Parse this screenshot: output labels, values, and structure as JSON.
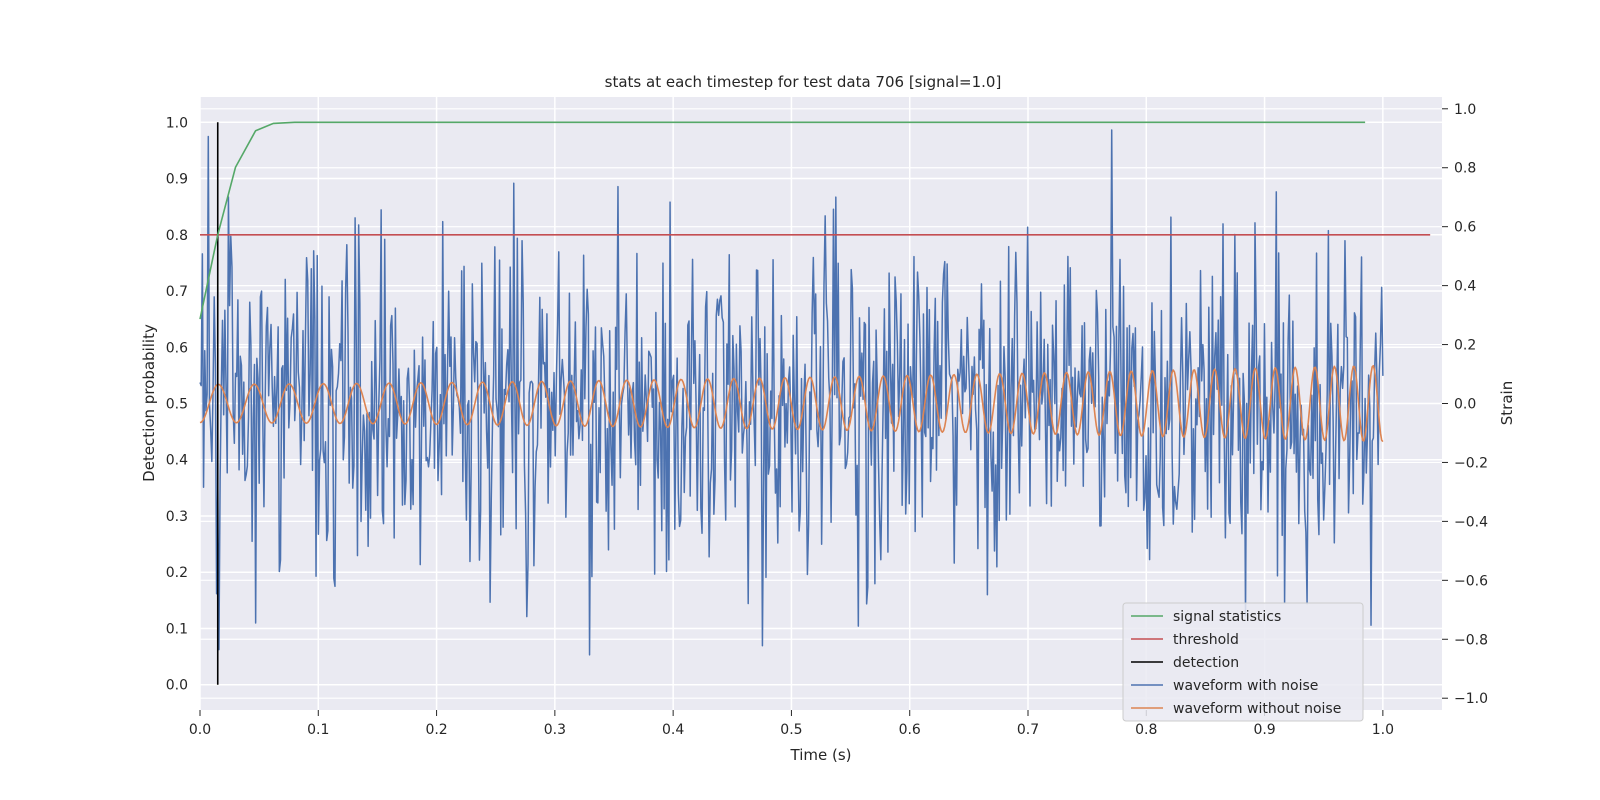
{
  "chart_data": {
    "type": "line",
    "title": "stats at each timestep for test data 706 [signal=1.0]",
    "xlabel": "Time (s)",
    "ylabel_left": "Detection probability",
    "ylabel_right": "Strain",
    "xlim": [
      0.0,
      1.05
    ],
    "ylim_left": [
      -0.045,
      1.045
    ],
    "ylim_right": [
      -1.04,
      1.04
    ],
    "grid": true,
    "legend_position": "lower-right",
    "x_ticks": [
      "0.0",
      "0.1",
      "0.2",
      "0.3",
      "0.4",
      "0.5",
      "0.6",
      "0.7",
      "0.8",
      "0.9",
      "1.0"
    ],
    "y_ticks_left": [
      "0.0",
      "0.1",
      "0.2",
      "0.3",
      "0.4",
      "0.5",
      "0.6",
      "0.7",
      "0.8",
      "0.9",
      "1.0"
    ],
    "y_ticks_right": [
      "−1.0",
      "−0.8",
      "−0.6",
      "−0.4",
      "−0.2",
      "0.0",
      "0.2",
      "0.4",
      "0.6",
      "0.8",
      "1.0"
    ],
    "colors": {
      "background": "#eaeaf2",
      "grid": "#ffffff",
      "signal_statistics": "#55a868",
      "threshold": "#c44e52",
      "detection": "#000000",
      "waveform_with_noise": "#4c72b0",
      "waveform_without_noise": "#dd8452"
    },
    "series": [
      {
        "name": "signal statistics",
        "axis": "left",
        "x": [
          0.0,
          0.015,
          0.03,
          0.047,
          0.062,
          0.08,
          0.12,
          0.3,
          0.6,
          0.9,
          0.985
        ],
        "y": [
          0.65,
          0.8,
          0.92,
          0.985,
          0.998,
          1.0,
          1.0,
          1.0,
          1.0,
          1.0,
          1.0
        ]
      },
      {
        "name": "threshold",
        "axis": "left",
        "x": [
          0.0,
          1.04
        ],
        "y": [
          0.8,
          0.8
        ]
      },
      {
        "name": "detection",
        "axis": "left",
        "x": [
          0.015,
          0.015
        ],
        "y": [
          0.0,
          1.0
        ]
      },
      {
        "name": "waveform with noise",
        "axis": "right",
        "n_points": 1000,
        "x_range": [
          0.0,
          1.0
        ],
        "y_range": [
          -0.96,
          1.0
        ],
        "amplitude_sd": 0.28
      },
      {
        "name": "waveform without noise",
        "axis": "right",
        "n_points": 1000,
        "x_range": [
          0.0,
          1.0
        ],
        "frequency_start_hz": 32,
        "frequency_end_hz": 62,
        "amplitude_start": 0.065,
        "amplitude_end": 0.13
      }
    ]
  }
}
